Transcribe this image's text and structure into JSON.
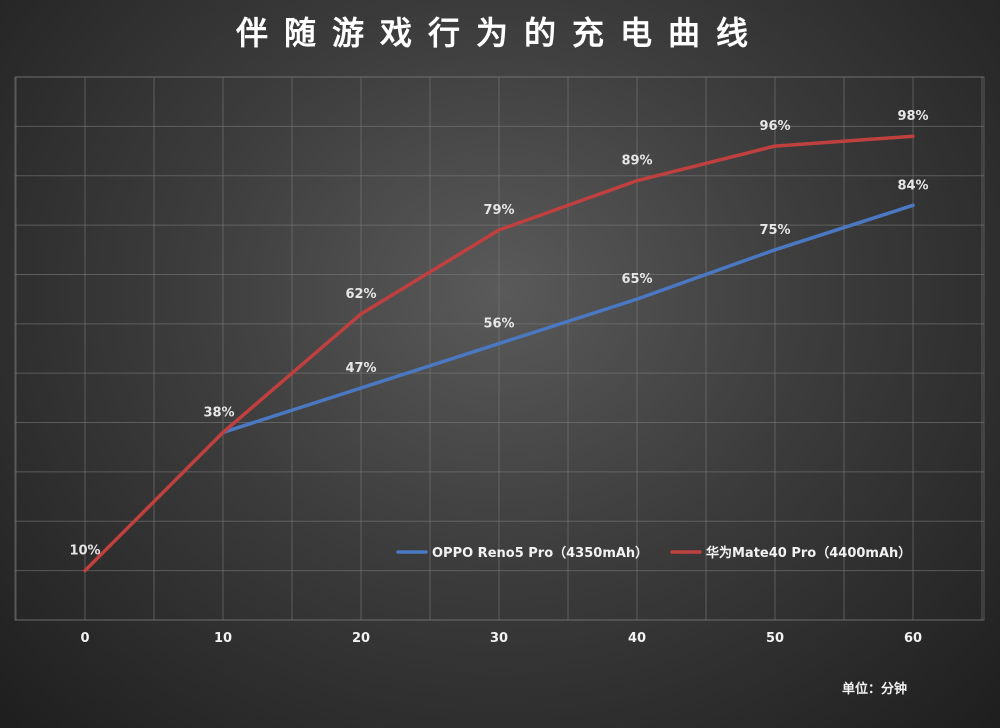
{
  "chart_data": {
    "type": "line",
    "title": "伴随游戏行为的充电曲线",
    "x": [
      0,
      10,
      20,
      30,
      40,
      50,
      60
    ],
    "xlim": [
      0,
      60
    ],
    "ylim": [
      0,
      110
    ],
    "grid": true,
    "legend_position": "bottom-right",
    "unit_label": "单位：分钟",
    "series": [
      {
        "name": "OPPO Reno5 Pro（4350mAh）",
        "color": "#4a78c2",
        "x": [
          10,
          20,
          30,
          40,
          50,
          60
        ],
        "values": [
          38,
          47,
          56,
          65,
          75,
          84
        ],
        "labels": [
          "",
          "47%",
          "56%",
          "65%",
          "75%",
          "84%"
        ]
      },
      {
        "name": "华为Mate40 Pro（4400mAh）",
        "color": "#c0403f",
        "x": [
          0,
          10,
          20,
          30,
          40,
          50,
          60
        ],
        "values": [
          10,
          38,
          62,
          79,
          89,
          96,
          98
        ],
        "labels": [
          "10%",
          "38%",
          "62%",
          "79%",
          "89%",
          "96%",
          "98%"
        ]
      }
    ]
  }
}
